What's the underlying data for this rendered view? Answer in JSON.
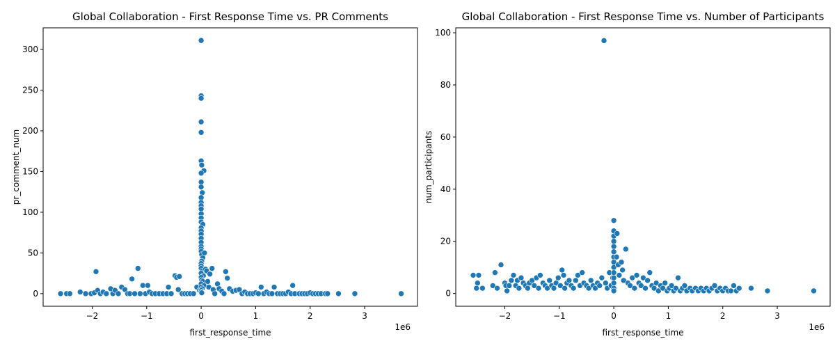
{
  "chart_data": [
    {
      "type": "scatter",
      "title": "Global Collaboration - First Response Time vs. PR Comments",
      "xlabel": "first_response_time",
      "ylabel": "pr_comment_num",
      "x_offset_label": "1e6",
      "xlim": [
        -2.9,
        3.97
      ],
      "ylim": [
        -15.5,
        326.5
      ],
      "xticks": [
        {
          "v": -2,
          "label": "−2"
        },
        {
          "v": -1,
          "label": "−1"
        },
        {
          "v": 0,
          "label": "0"
        },
        {
          "v": 1,
          "label": "1"
        },
        {
          "v": 2,
          "label": "2"
        },
        {
          "v": 3,
          "label": "3"
        }
      ],
      "yticks": [
        {
          "v": 0,
          "label": "0"
        },
        {
          "v": 50,
          "label": "50"
        },
        {
          "v": 100,
          "label": "100"
        },
        {
          "v": 150,
          "label": "150"
        },
        {
          "v": 200,
          "label": "200"
        },
        {
          "v": 250,
          "label": "250"
        },
        {
          "v": 300,
          "label": "300"
        }
      ],
      "color": "#1f77b4",
      "x_unit": "×1e6",
      "points": [
        [
          -2.58,
          0
        ],
        [
          -2.47,
          0
        ],
        [
          -2.41,
          0
        ],
        [
          -2.22,
          2
        ],
        [
          -2.12,
          0
        ],
        [
          -2.02,
          0
        ],
        [
          -1.96,
          1
        ],
        [
          -1.93,
          27
        ],
        [
          -1.9,
          4
        ],
        [
          -1.85,
          0
        ],
        [
          -1.8,
          2
        ],
        [
          -1.74,
          0
        ],
        [
          -1.66,
          6
        ],
        [
          -1.62,
          0
        ],
        [
          -1.58,
          4
        ],
        [
          -1.52,
          0
        ],
        [
          -1.46,
          8
        ],
        [
          -1.4,
          5
        ],
        [
          -1.35,
          0
        ],
        [
          -1.31,
          0
        ],
        [
          -1.27,
          18
        ],
        [
          -1.22,
          0
        ],
        [
          -1.16,
          31
        ],
        [
          -1.12,
          0
        ],
        [
          -1.07,
          10
        ],
        [
          -1.02,
          0
        ],
        [
          -0.98,
          10
        ],
        [
          -0.95,
          2
        ],
        [
          -0.9,
          0
        ],
        [
          -0.84,
          0
        ],
        [
          -0.77,
          0
        ],
        [
          -0.7,
          0
        ],
        [
          -0.63,
          0
        ],
        [
          -0.6,
          8
        ],
        [
          -0.55,
          0
        ],
        [
          -0.48,
          22
        ],
        [
          -0.45,
          20
        ],
        [
          -0.42,
          5
        ],
        [
          -0.4,
          21
        ],
        [
          -0.35,
          0
        ],
        [
          -0.3,
          0
        ],
        [
          -0.25,
          0
        ],
        [
          -0.2,
          0
        ],
        [
          -0.14,
          0
        ],
        [
          -0.08,
          8
        ],
        [
          -0.03,
          4
        ],
        [
          0,
          311
        ],
        [
          0,
          243
        ],
        [
          0,
          240
        ],
        [
          0,
          211
        ],
        [
          0,
          198
        ],
        [
          0,
          163
        ],
        [
          0.01,
          158
        ],
        [
          0.05,
          151
        ],
        [
          0,
          148
        ],
        [
          0,
          137
        ],
        [
          0,
          131
        ],
        [
          0.02,
          124
        ],
        [
          0,
          118
        ],
        [
          0,
          112
        ],
        [
          0,
          108
        ],
        [
          0,
          104
        ],
        [
          0,
          98
        ],
        [
          0,
          93
        ],
        [
          0,
          88
        ],
        [
          0.03,
          85
        ],
        [
          0,
          81
        ],
        [
          0,
          77
        ],
        [
          0,
          73
        ],
        [
          0,
          68
        ],
        [
          0,
          63
        ],
        [
          0,
          58
        ],
        [
          0,
          55
        ],
        [
          0,
          52
        ],
        [
          0.01,
          48
        ],
        [
          0.03,
          44
        ],
        [
          0.01,
          40
        ],
        [
          0,
          37
        ],
        [
          0,
          34
        ],
        [
          0,
          31
        ],
        [
          0.02,
          28
        ],
        [
          0,
          25
        ],
        [
          0.04,
          22
        ],
        [
          0,
          20
        ],
        [
          0.01,
          17
        ],
        [
          0.03,
          15
        ],
        [
          0,
          12
        ],
        [
          0.05,
          10
        ],
        [
          0,
          8
        ],
        [
          0.02,
          6
        ],
        [
          0,
          4
        ],
        [
          0,
          2
        ],
        [
          0.01,
          1
        ],
        [
          0.06,
          50
        ],
        [
          0.08,
          30
        ],
        [
          0.1,
          28
        ],
        [
          0.12,
          15
        ],
        [
          0.14,
          8
        ],
        [
          0.16,
          24
        ],
        [
          0.2,
          31
        ],
        [
          0.22,
          5
        ],
        [
          0.25,
          0
        ],
        [
          0.3,
          12
        ],
        [
          0.33,
          6
        ],
        [
          0.38,
          3
        ],
        [
          0.42,
          0
        ],
        [
          0.45,
          27
        ],
        [
          0.48,
          19
        ],
        [
          0.52,
          6
        ],
        [
          0.58,
          3
        ],
        [
          0.64,
          4
        ],
        [
          0.7,
          5
        ],
        [
          0.75,
          0
        ],
        [
          0.8,
          2
        ],
        [
          0.85,
          0
        ],
        [
          0.9,
          0
        ],
        [
          0.95,
          0
        ],
        [
          1.0,
          1
        ],
        [
          1.05,
          0
        ],
        [
          1.1,
          8
        ],
        [
          1.15,
          0
        ],
        [
          1.2,
          2
        ],
        [
          1.25,
          0
        ],
        [
          1.3,
          0
        ],
        [
          1.34,
          8
        ],
        [
          1.4,
          0
        ],
        [
          1.45,
          0
        ],
        [
          1.5,
          0
        ],
        [
          1.55,
          0
        ],
        [
          1.6,
          2
        ],
        [
          1.65,
          0
        ],
        [
          1.68,
          10
        ],
        [
          1.72,
          0
        ],
        [
          1.8,
          0
        ],
        [
          1.85,
          0
        ],
        [
          1.9,
          0
        ],
        [
          1.95,
          0
        ],
        [
          2.0,
          1
        ],
        [
          2.05,
          0
        ],
        [
          2.1,
          0
        ],
        [
          2.15,
          0
        ],
        [
          2.2,
          0
        ],
        [
          2.28,
          0
        ],
        [
          2.32,
          0
        ],
        [
          2.52,
          0
        ],
        [
          2.82,
          0
        ],
        [
          3.67,
          0
        ]
      ]
    },
    {
      "type": "scatter",
      "title": "Global Collaboration - First Response Time vs. Number of Participants",
      "xlabel": "first_response_time",
      "ylabel": "num_participants",
      "x_offset_label": "1e6",
      "xlim": [
        -2.9,
        3.97
      ],
      "ylim": [
        -4.9,
        101.9
      ],
      "xticks": [
        {
          "v": -2,
          "label": "−2"
        },
        {
          "v": -1,
          "label": "−1"
        },
        {
          "v": 0,
          "label": "0"
        },
        {
          "v": 1,
          "label": "1"
        },
        {
          "v": 2,
          "label": "2"
        },
        {
          "v": 3,
          "label": "3"
        }
      ],
      "yticks": [
        {
          "v": 0,
          "label": "0"
        },
        {
          "v": 20,
          "label": "20"
        },
        {
          "v": 40,
          "label": "40"
        },
        {
          "v": 60,
          "label": "60"
        },
        {
          "v": 80,
          "label": "80"
        },
        {
          "v": 100,
          "label": "100"
        }
      ],
      "color": "#1f77b4",
      "x_unit": "×1e6",
      "points": [
        [
          -2.58,
          7
        ],
        [
          -2.52,
          2
        ],
        [
          -2.5,
          4
        ],
        [
          -2.48,
          7
        ],
        [
          -2.41,
          2
        ],
        [
          -2.22,
          3
        ],
        [
          -2.18,
          8
        ],
        [
          -2.14,
          2
        ],
        [
          -2.07,
          11
        ],
        [
          -2.0,
          4
        ],
        [
          -1.98,
          3
        ],
        [
          -1.96,
          1
        ],
        [
          -1.92,
          3
        ],
        [
          -1.88,
          5
        ],
        [
          -1.84,
          7
        ],
        [
          -1.8,
          3
        ],
        [
          -1.77,
          5
        ],
        [
          -1.74,
          2
        ],
        [
          -1.7,
          6
        ],
        [
          -1.66,
          4
        ],
        [
          -1.62,
          3
        ],
        [
          -1.58,
          2
        ],
        [
          -1.55,
          4
        ],
        [
          -1.5,
          5
        ],
        [
          -1.46,
          3
        ],
        [
          -1.42,
          6
        ],
        [
          -1.38,
          2
        ],
        [
          -1.35,
          7
        ],
        [
          -1.3,
          4
        ],
        [
          -1.26,
          3
        ],
        [
          -1.22,
          2
        ],
        [
          -1.18,
          5
        ],
        [
          -1.14,
          3
        ],
        [
          -1.1,
          2
        ],
        [
          -1.06,
          4
        ],
        [
          -1.02,
          6
        ],
        [
          -0.98,
          3
        ],
        [
          -0.95,
          9
        ],
        [
          -0.92,
          7
        ],
        [
          -0.9,
          2
        ],
        [
          -0.86,
          4
        ],
        [
          -0.82,
          5
        ],
        [
          -0.78,
          3
        ],
        [
          -0.74,
          2
        ],
        [
          -0.7,
          5
        ],
        [
          -0.66,
          7
        ],
        [
          -0.62,
          3
        ],
        [
          -0.58,
          8
        ],
        [
          -0.55,
          4
        ],
        [
          -0.5,
          3
        ],
        [
          -0.46,
          2
        ],
        [
          -0.42,
          5
        ],
        [
          -0.38,
          3
        ],
        [
          -0.34,
          2
        ],
        [
          -0.3,
          4
        ],
        [
          -0.26,
          3
        ],
        [
          -0.22,
          6
        ],
        [
          -0.18,
          97
        ],
        [
          -0.15,
          4
        ],
        [
          -0.12,
          2
        ],
        [
          -0.08,
          8
        ],
        [
          -0.05,
          3
        ],
        [
          -0.02,
          6
        ],
        [
          0,
          28
        ],
        [
          0,
          24
        ],
        [
          0,
          22
        ],
        [
          0,
          20
        ],
        [
          0,
          18
        ],
        [
          0,
          16
        ],
        [
          0,
          14
        ],
        [
          0,
          12
        ],
        [
          0,
          10
        ],
        [
          0,
          8
        ],
        [
          0,
          6
        ],
        [
          0,
          4
        ],
        [
          0,
          2
        ],
        [
          0,
          1
        ],
        [
          0.06,
          23
        ],
        [
          0.05,
          14
        ],
        [
          0.08,
          11
        ],
        [
          0.1,
          7
        ],
        [
          0.14,
          12
        ],
        [
          0.16,
          9
        ],
        [
          0.18,
          5
        ],
        [
          0.22,
          17
        ],
        [
          0.26,
          4
        ],
        [
          0.3,
          3
        ],
        [
          0.34,
          6
        ],
        [
          0.38,
          2
        ],
        [
          0.42,
          7
        ],
        [
          0.46,
          4
        ],
        [
          0.5,
          3
        ],
        [
          0.54,
          6
        ],
        [
          0.58,
          2
        ],
        [
          0.62,
          5
        ],
        [
          0.66,
          8
        ],
        [
          0.7,
          3
        ],
        [
          0.74,
          2
        ],
        [
          0.78,
          4
        ],
        [
          0.82,
          1
        ],
        [
          0.86,
          3
        ],
        [
          0.9,
          2
        ],
        [
          0.94,
          4
        ],
        [
          0.98,
          1
        ],
        [
          1.02,
          2
        ],
        [
          1.06,
          3
        ],
        [
          1.1,
          1
        ],
        [
          1.14,
          2
        ],
        [
          1.18,
          6
        ],
        [
          1.22,
          1
        ],
        [
          1.26,
          2
        ],
        [
          1.3,
          3
        ],
        [
          1.34,
          1
        ],
        [
          1.4,
          2
        ],
        [
          1.44,
          1
        ],
        [
          1.5,
          2
        ],
        [
          1.55,
          1
        ],
        [
          1.6,
          2
        ],
        [
          1.65,
          1
        ],
        [
          1.7,
          2
        ],
        [
          1.75,
          1
        ],
        [
          1.8,
          2
        ],
        [
          1.85,
          3
        ],
        [
          1.9,
          1
        ],
        [
          1.95,
          2
        ],
        [
          2.0,
          1
        ],
        [
          2.05,
          2
        ],
        [
          2.1,
          1
        ],
        [
          2.15,
          1
        ],
        [
          2.2,
          3
        ],
        [
          2.25,
          1
        ],
        [
          2.3,
          2
        ],
        [
          2.52,
          2
        ],
        [
          2.82,
          1
        ],
        [
          3.67,
          1
        ]
      ]
    }
  ]
}
